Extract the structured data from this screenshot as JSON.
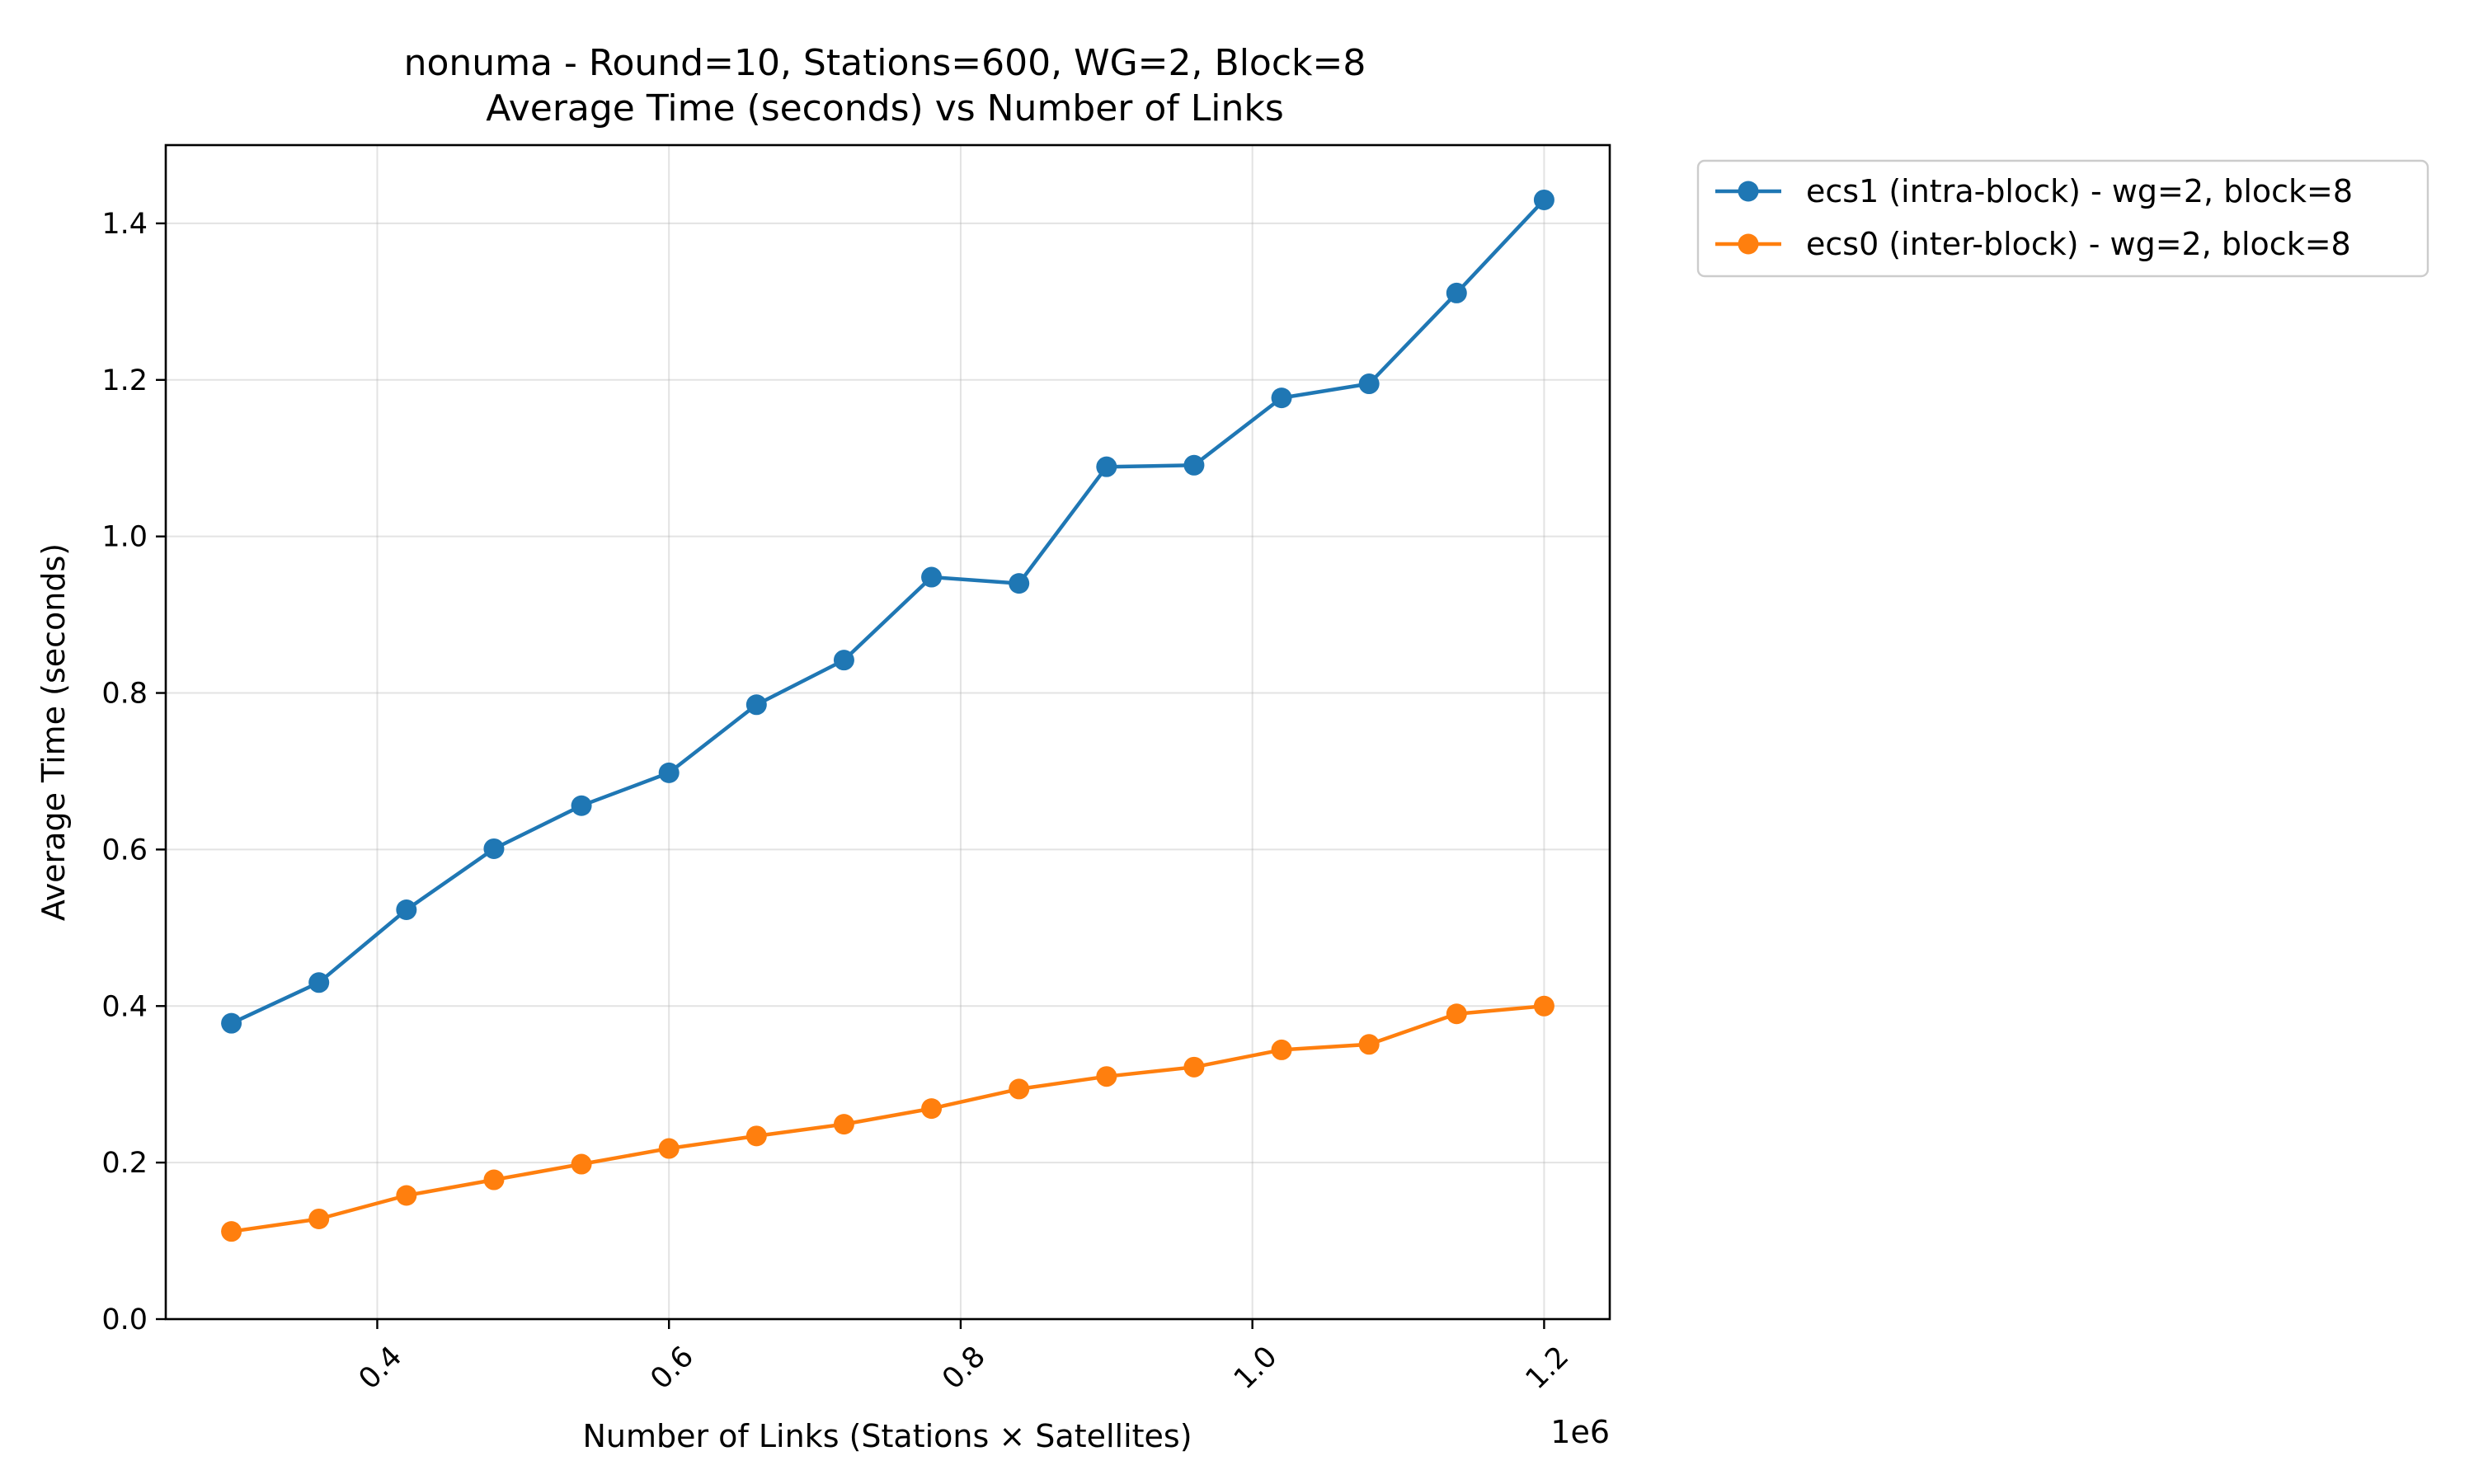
{
  "chart_data": {
    "type": "line",
    "title": "nonuma - Round=10, Stations=600, WG=2, Block=8",
    "subtitle": "Average Time (seconds) vs Number of Links",
    "xlabel": "Number of Links (Stations × Satellites)",
    "ylabel": "Average Time (seconds)",
    "x_offset_label": "1e6",
    "xlim": [
      0.255,
      1.245
    ],
    "ylim": [
      0,
      1.5
    ],
    "x_ticks": [
      0.4,
      0.6,
      0.8,
      1.0,
      1.2
    ],
    "x_tick_labels": [
      "0.4",
      "0.6",
      "0.8",
      "1.0",
      "1.2"
    ],
    "y_ticks": [
      0,
      0.2,
      0.4,
      0.6,
      0.8,
      1.0,
      1.2,
      1.4
    ],
    "y_tick_labels": [
      "0.0",
      "0.2",
      "0.4",
      "0.6",
      "0.8",
      "1.0",
      "1.2",
      "1.4"
    ],
    "grid": true,
    "legend_position": "outside-top-right",
    "x": [
      0.3,
      0.36,
      0.42,
      0.48,
      0.54,
      0.6,
      0.66,
      0.72,
      0.78,
      0.84,
      0.9,
      0.96,
      1.02,
      1.08,
      1.14,
      1.2
    ],
    "series": [
      {
        "name": "ecs1 (intra-block) - wg=2, block=8",
        "color": "#1f77b4",
        "values": [
          0.378,
          0.43,
          0.523,
          0.601,
          0.656,
          0.698,
          0.785,
          0.842,
          0.948,
          0.94,
          1.089,
          1.091,
          1.177,
          1.195,
          1.311,
          1.43
        ]
      },
      {
        "name": "ecs0 (inter-block) - wg=2, block=8",
        "color": "#ff7f0e",
        "values": [
          0.112,
          0.128,
          0.158,
          0.178,
          0.198,
          0.218,
          0.234,
          0.249,
          0.269,
          0.294,
          0.31,
          0.322,
          0.344,
          0.351,
          0.39,
          0.4
        ]
      }
    ]
  }
}
